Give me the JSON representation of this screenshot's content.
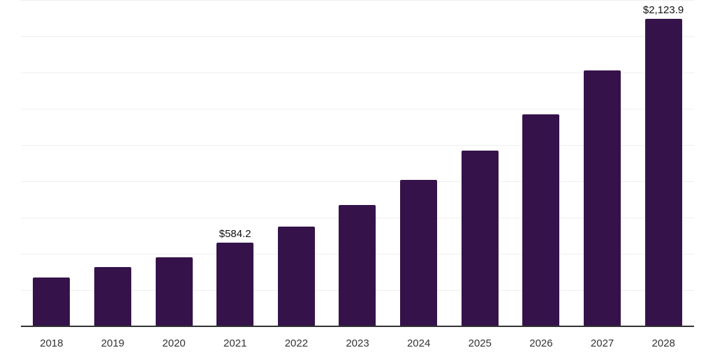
{
  "chart_data": {
    "type": "bar",
    "title": "",
    "xlabel": "",
    "ylabel": "",
    "categories": [
      "2018",
      "2019",
      "2020",
      "2021",
      "2022",
      "2023",
      "2024",
      "2025",
      "2026",
      "2027",
      "2028"
    ],
    "values": [
      340.0,
      415.0,
      479.0,
      584.2,
      692.0,
      841.0,
      1013.0,
      1218.0,
      1466.0,
      1768.0,
      2123.9
    ],
    "point_labels": [
      {
        "category": "2021",
        "text": "$584.2"
      },
      {
        "category": "2028",
        "text": "$2,123.9"
      }
    ],
    "ylim": [
      0,
      2250
    ],
    "gridline_interval": 250,
    "grid": "horizontal-only",
    "y_tick_labels_visible": false,
    "legend": "none",
    "colors": {
      "bar": "#35134A",
      "axis_line": "#333333",
      "gridline": "#efefef",
      "tick_label": "#333333",
      "value_label": "#111111",
      "background": "#ffffff"
    }
  }
}
